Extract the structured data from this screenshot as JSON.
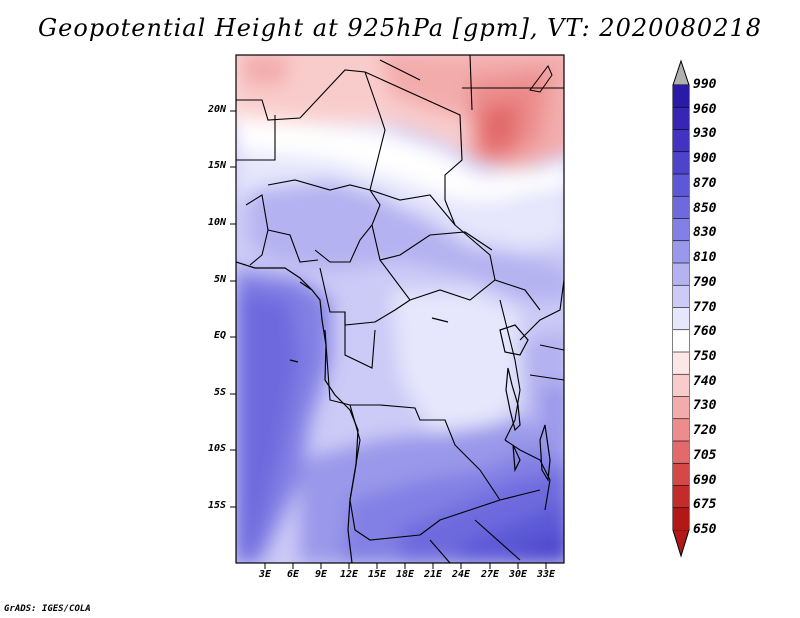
{
  "title": "Geopotential Height at 925hPa [gpm], VT: 2020080218",
  "footer": "GrADS: IGES/COLA",
  "map": {
    "lat_labels": [
      "20N",
      "15N",
      "10N",
      "5N",
      "EQ",
      "5S",
      "10S",
      "15S"
    ],
    "lon_labels": [
      "3E",
      "6E",
      "9E",
      "12E",
      "15E",
      "18E",
      "21E",
      "24E",
      "27E",
      "30E",
      "33E"
    ]
  },
  "colorbar": {
    "labels": [
      "990",
      "960",
      "930",
      "900",
      "870",
      "850",
      "830",
      "810",
      "790",
      "770",
      "760",
      "750",
      "740",
      "730",
      "720",
      "705",
      "690",
      "675",
      "650"
    ],
    "colors": [
      "#2a1aa8",
      "#3725b4",
      "#4234c0",
      "#4e44cc",
      "#5c58d6",
      "#6e6ade",
      "#8280e4",
      "#9a98ea",
      "#b4b2f0",
      "#cccaf6",
      "#e6e6fc",
      "#ffffff",
      "#fde6e6",
      "#f9cccc",
      "#f3acac",
      "#ec8c8c",
      "#e26a6a",
      "#d44848",
      "#c42c2c",
      "#b21818"
    ]
  }
}
